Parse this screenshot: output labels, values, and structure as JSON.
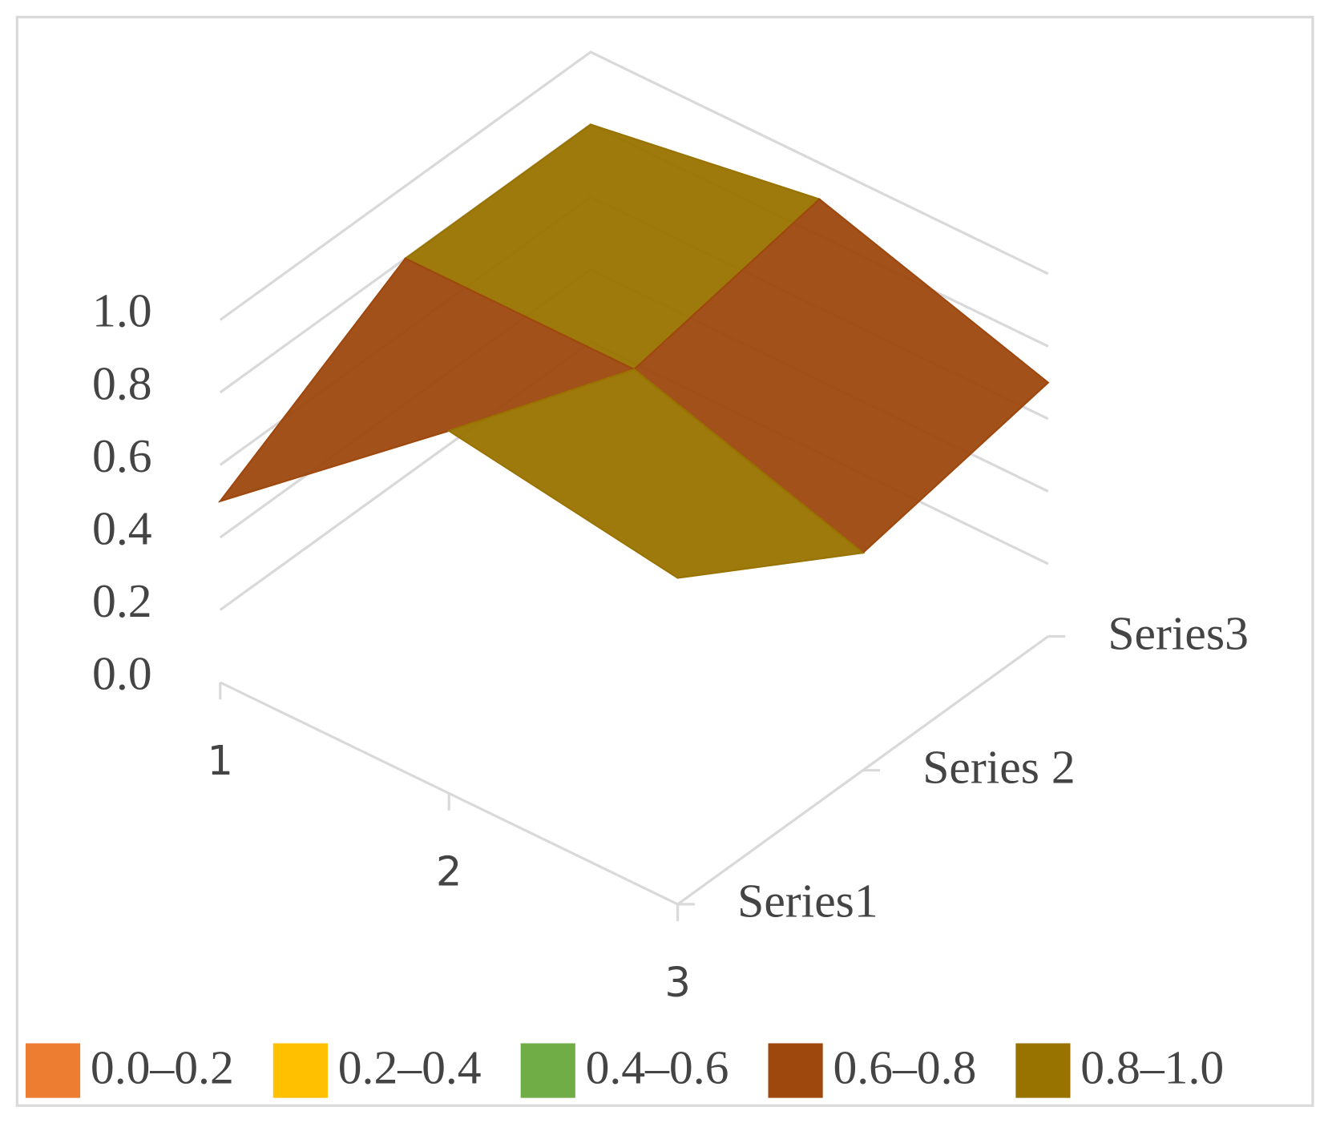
{
  "chart_data": {
    "type": "surface",
    "categories": [
      "1",
      "2",
      "3"
    ],
    "series": [
      {
        "name": "Series1",
        "values": [
          0.5,
          1.0,
          0.9
        ]
      },
      {
        "name": "Series 2",
        "values": [
          0.8,
          0.8,
          0.6
        ]
      },
      {
        "name": "Series3",
        "values": [
          0.8,
          0.9,
          0.7
        ]
      }
    ],
    "zlim": [
      0,
      1
    ],
    "zticks": [
      {
        "value": 0,
        "label": "0.0"
      },
      {
        "value": 0.2,
        "label": "0.2"
      },
      {
        "value": 0.4,
        "label": "0.4"
      },
      {
        "value": 0.6,
        "label": "0.6"
      },
      {
        "value": 0.8,
        "label": "0.8"
      },
      {
        "value": 1,
        "label": "1.0"
      }
    ],
    "bands": [
      {
        "label": "0.0–0.2",
        "range": [
          0,
          0.2
        ],
        "color": "#ed7d31"
      },
      {
        "label": "0.2–0.4",
        "range": [
          0.2,
          0.4
        ],
        "color": "#ffc000"
      },
      {
        "label": "0.4–0.6",
        "range": [
          0.4,
          0.6
        ],
        "color": "#70ad47"
      },
      {
        "label": "0.6–0.8",
        "range": [
          0.6,
          0.8
        ],
        "color": "#9e480e"
      },
      {
        "label": "0.8–1.0",
        "range": [
          0.8,
          1.0
        ],
        "color": "#997300"
      }
    ],
    "grid": true,
    "legend": "bottom"
  }
}
